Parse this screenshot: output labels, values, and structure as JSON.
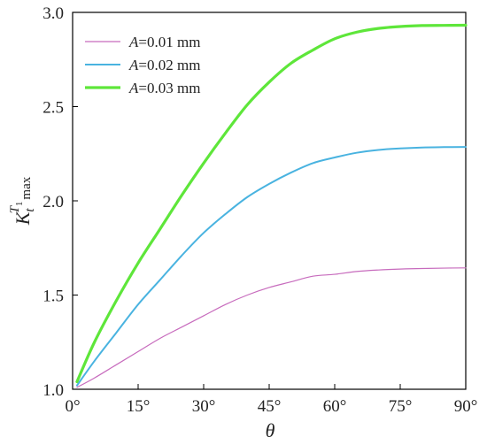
{
  "chart_data": {
    "type": "line",
    "title": "",
    "xlabel": "θ",
    "ylabel": "K",
    "ylabel_sup": "T",
    "ylabel_sup_sub": "1",
    "ylabel_sub": "t",
    "ylabel_sub_extra": "max",
    "xlim": [
      0,
      90
    ],
    "ylim": [
      1.0,
      3.0
    ],
    "x_ticks": [
      0,
      15,
      30,
      45,
      60,
      75,
      90
    ],
    "x_tick_labels": [
      "0°",
      "15°",
      "30°",
      "45°",
      "60°",
      "75°",
      "90°"
    ],
    "y_ticks": [
      1.0,
      1.5,
      2.0,
      2.5,
      3.0
    ],
    "y_tick_labels": [
      "1.0",
      "1.5",
      "2.0",
      "2.5",
      "3.0"
    ],
    "grid": false,
    "legend_position": "top-left",
    "x": [
      1,
      5,
      10,
      15,
      20,
      25,
      30,
      35,
      40,
      45,
      50,
      55,
      60,
      65,
      70,
      75,
      80,
      85,
      90
    ],
    "series": [
      {
        "name": "A=0.01 mm",
        "name_var": "A",
        "name_rest": "=0.01 mm",
        "color": "#c76bbd",
        "width": 1.2,
        "values": [
          1.01,
          1.06,
          1.13,
          1.2,
          1.27,
          1.33,
          1.39,
          1.45,
          1.5,
          1.54,
          1.57,
          1.6,
          1.61,
          1.625,
          1.633,
          1.638,
          1.641,
          1.643,
          1.644
        ]
      },
      {
        "name": "A=0.02 mm",
        "name_var": "A",
        "name_rest": "=0.02 mm",
        "color": "#49b3e0",
        "width": 2,
        "values": [
          1.02,
          1.15,
          1.3,
          1.45,
          1.58,
          1.71,
          1.83,
          1.93,
          2.02,
          2.09,
          2.15,
          2.2,
          2.23,
          2.255,
          2.27,
          2.278,
          2.283,
          2.285,
          2.286
        ]
      },
      {
        "name": "A=0.03 mm",
        "name_var": "A",
        "name_rest": "=0.03 mm",
        "color": "#5ee63a",
        "width": 3.2,
        "values": [
          1.04,
          1.25,
          1.47,
          1.67,
          1.85,
          2.03,
          2.2,
          2.36,
          2.51,
          2.63,
          2.73,
          2.8,
          2.86,
          2.895,
          2.915,
          2.925,
          2.93,
          2.931,
          2.932
        ]
      }
    ]
  }
}
